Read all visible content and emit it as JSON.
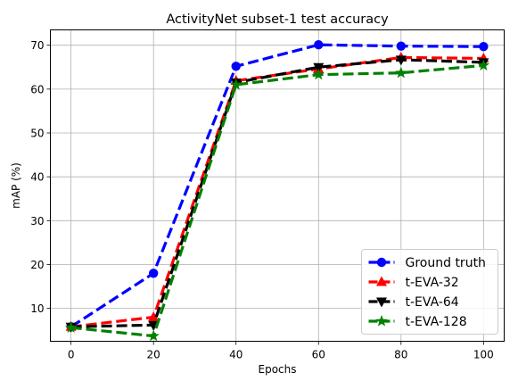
{
  "chart_data": {
    "type": "line",
    "title": "ActivityNet subset-1 test accuracy",
    "xlabel": "Epochs",
    "ylabel": "mAP (%)",
    "x": [
      0,
      20,
      40,
      60,
      80,
      100
    ],
    "xticks": [
      "0",
      "20",
      "40",
      "60",
      "80",
      "100"
    ],
    "yticks": [
      "10",
      "20",
      "30",
      "40",
      "50",
      "60",
      "70"
    ],
    "xlim": [
      -5,
      105
    ],
    "ylim": [
      2.5,
      73.5
    ],
    "grid": true,
    "legend_position": "lower-right",
    "series": [
      {
        "name": "Ground truth",
        "values": [
          5.8,
          18.0,
          65.2,
          70.1,
          69.8,
          69.7
        ],
        "color": "#0000ff",
        "marker": "circle"
      },
      {
        "name": "t-EVA-32",
        "values": [
          5.8,
          8.0,
          61.9,
          64.6,
          67.2,
          67.0
        ],
        "color": "#ff0000",
        "marker": "triangle-up"
      },
      {
        "name": "t-EVA-64",
        "values": [
          5.8,
          6.2,
          61.5,
          65.0,
          66.7,
          66.1
        ],
        "color": "#000000",
        "marker": "triangle-down"
      },
      {
        "name": "t-EVA-128",
        "values": [
          5.6,
          3.7,
          61.0,
          63.3,
          63.7,
          65.4
        ],
        "color": "#008000",
        "marker": "star"
      }
    ]
  }
}
